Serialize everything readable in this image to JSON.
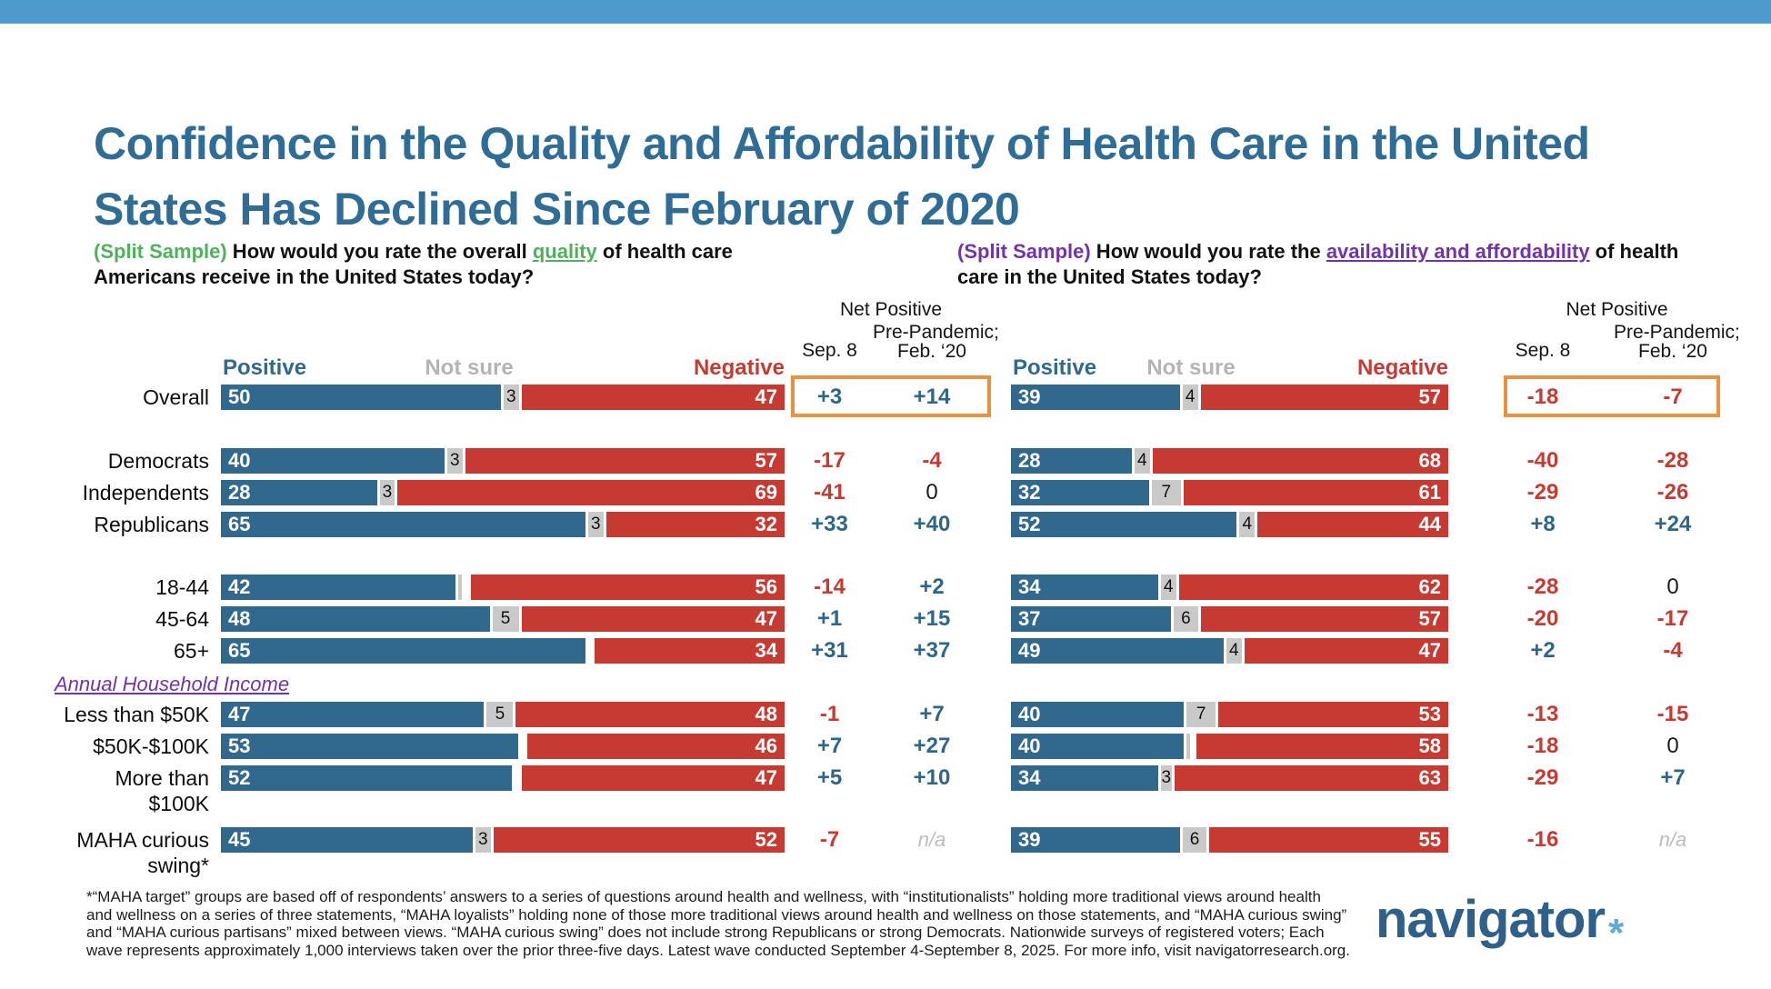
{
  "page": {
    "title": "Confidence in the Quality and Affordability of Health Care in the United States Has Declined Since February of 2020",
    "footnote": "*“MAHA target” groups are based off of respondents’ answers to a series of questions around health and wellness, with “institutionalists” holding more traditional views around health and wellness on a series of three statements, “MAHA loyalists” holding none of those more traditional views around health and wellness on those statements, and “MAHA curious swing” and “MAHA curious partisans” mixed between views. “MAHA curious swing” does not include strong Republicans or strong Democrats. Nationwide surveys of registered voters; Each wave represents approximately 1,000 interviews taken over the prior three-five days.  Latest wave conducted September 4-September 8, 2025. For more info, visit navigatorresearch.org.",
    "logo_text": "navigator",
    "logo_mark": "*"
  },
  "questions": {
    "left": {
      "prefix": "(Split Sample)",
      "before": " How would you rate the overall ",
      "highlight": "quality",
      "after": " of health care Americans receive in the United States today?"
    },
    "right": {
      "prefix": "(Split Sample)",
      "before": " How would you rate the ",
      "highlight": "availability and affordability",
      "after": " of health care in the United States today?"
    }
  },
  "headers": {
    "positive": "Positive",
    "not_sure": "Not sure",
    "negative": "Negative",
    "net_positive": "Net Positive",
    "sep8": "Sep. 8",
    "prepandemic_line1": "Pre-Pandemic;",
    "prepandemic_line2": "Feb. ‘20"
  },
  "income_section_label": "Annual Household Income",
  "colors": {
    "positive_bar": "#31688e",
    "negative_bar": "#c73a31",
    "not_sure_box": "#c9c9c9",
    "highlight_box": "#e89140",
    "title_blue": "#2f6d96",
    "green_accent": "#50b15c",
    "purple_accent": "#7233a8",
    "top_bar": "#4c9bca"
  },
  "chart_data": {
    "type": "bar",
    "subtype": "diverging-stacked-pair",
    "legend": [
      "Positive",
      "Not sure",
      "Negative"
    ],
    "net_columns": [
      "Sep. 8",
      "Pre-Pandemic; Feb. ‘20"
    ],
    "rows": [
      {
        "label": "Overall",
        "highlight": true,
        "quality": {
          "positive": 50,
          "not_sure": 3,
          "not_sure_style": "box",
          "negative": 47,
          "net_sep8": "+3",
          "net_feb20": "+14"
        },
        "affordability": {
          "positive": 39,
          "not_sure": 4,
          "not_sure_style": "box",
          "negative": 57,
          "net_sep8": "-18",
          "net_feb20": "-7"
        }
      },
      {
        "label": "Democrats",
        "quality": {
          "positive": 40,
          "not_sure": 3,
          "not_sure_style": "box",
          "negative": 57,
          "net_sep8": "-17",
          "net_feb20": "-4"
        },
        "affordability": {
          "positive": 28,
          "not_sure": 4,
          "not_sure_style": "box",
          "negative": 68,
          "net_sep8": "-40",
          "net_feb20": "-28"
        }
      },
      {
        "label": "Independents",
        "quality": {
          "positive": 28,
          "not_sure": 3,
          "not_sure_style": "box",
          "negative": 69,
          "net_sep8": "-41",
          "net_feb20": "0"
        },
        "affordability": {
          "positive": 32,
          "not_sure": 7,
          "not_sure_style": "box",
          "negative": 61,
          "net_sep8": "-29",
          "net_feb20": "-26"
        }
      },
      {
        "label": "Republicans",
        "quality": {
          "positive": 65,
          "not_sure": 3,
          "not_sure_style": "box",
          "negative": 32,
          "net_sep8": "+33",
          "net_feb20": "+40"
        },
        "affordability": {
          "positive": 52,
          "not_sure": 4,
          "not_sure_style": "box",
          "negative": 44,
          "net_sep8": "+8",
          "net_feb20": "+24"
        }
      },
      {
        "label": "18-44",
        "quality": {
          "positive": 42,
          "not_sure": 2,
          "not_sure_style": "sliver",
          "negative": 56,
          "net_sep8": "-14",
          "net_feb20": "+2"
        },
        "affordability": {
          "positive": 34,
          "not_sure": 4,
          "not_sure_style": "box",
          "negative": 62,
          "net_sep8": "-28",
          "net_feb20": "0"
        }
      },
      {
        "label": "45-64",
        "quality": {
          "positive": 48,
          "not_sure": 5,
          "not_sure_style": "box",
          "negative": 47,
          "net_sep8": "+1",
          "net_feb20": "+15"
        },
        "affordability": {
          "positive": 37,
          "not_sure": 6,
          "not_sure_style": "box",
          "negative": 57,
          "net_sep8": "-20",
          "net_feb20": "-17"
        }
      },
      {
        "label": "65+",
        "quality": {
          "positive": 65,
          "not_sure": 1,
          "not_sure_style": "gap",
          "negative": 34,
          "net_sep8": "+31",
          "net_feb20": "+37"
        },
        "affordability": {
          "positive": 49,
          "not_sure": 4,
          "not_sure_style": "box",
          "negative": 47,
          "net_sep8": "+2",
          "net_feb20": "-4"
        }
      },
      {
        "label": "Less than $50K",
        "section": "Annual Household Income",
        "quality": {
          "positive": 47,
          "not_sure": 5,
          "not_sure_style": "box",
          "negative": 48,
          "net_sep8": "-1",
          "net_feb20": "+7"
        },
        "affordability": {
          "positive": 40,
          "not_sure": 7,
          "not_sure_style": "box",
          "negative": 53,
          "net_sep8": "-13",
          "net_feb20": "-15"
        }
      },
      {
        "label": "$50K-$100K",
        "quality": {
          "positive": 53,
          "not_sure": 1,
          "not_sure_style": "gap",
          "negative": 46,
          "net_sep8": "+7",
          "net_feb20": "+27"
        },
        "affordability": {
          "positive": 40,
          "not_sure": 2,
          "not_sure_style": "sliver",
          "negative": 58,
          "net_sep8": "-18",
          "net_feb20": "0"
        }
      },
      {
        "label": "More than $100K",
        "quality": {
          "positive": 52,
          "not_sure": 1,
          "not_sure_style": "gap",
          "negative": 47,
          "net_sep8": "+5",
          "net_feb20": "+10"
        },
        "affordability": {
          "positive": 34,
          "not_sure": 3,
          "not_sure_style": "box",
          "negative": 63,
          "net_sep8": "-29",
          "net_feb20": "+7"
        }
      },
      {
        "label": "MAHA curious swing*",
        "quality": {
          "positive": 45,
          "not_sure": 3,
          "not_sure_style": "box",
          "negative": 52,
          "net_sep8": "-7",
          "net_feb20": "n/a"
        },
        "affordability": {
          "positive": 39,
          "not_sure": 6,
          "not_sure_style": "box",
          "negative": 55,
          "net_sep8": "-16",
          "net_feb20": "n/a"
        }
      }
    ]
  }
}
